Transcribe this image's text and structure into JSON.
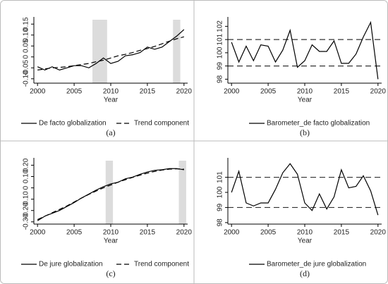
{
  "chart_data": [
    {
      "type": "line",
      "label": "(a)",
      "x_label": "Year",
      "x": [
        2000,
        2001,
        2002,
        2003,
        2004,
        2005,
        2006,
        2007,
        2008,
        2009,
        2010,
        2011,
        2012,
        2013,
        2014,
        2015,
        2016,
        2017,
        2018,
        2019,
        2020
      ],
      "series": [
        {
          "name": "De facto globalization",
          "color": "#000000",
          "style": "solid",
          "values": [
            -0.045,
            -0.06,
            -0.045,
            -0.06,
            -0.05,
            -0.04,
            -0.04,
            -0.05,
            -0.03,
            -0.005,
            -0.03,
            -0.02,
            0.005,
            0.01,
            0.02,
            0.045,
            0.035,
            0.045,
            0.07,
            0.095,
            0.125
          ]
        },
        {
          "name": "Trend component",
          "color": "#000000",
          "style": "dashed",
          "values": [
            -0.06,
            -0.055,
            -0.05,
            -0.048,
            -0.045,
            -0.04,
            -0.035,
            -0.03,
            -0.022,
            -0.015,
            -0.005,
            0.005,
            0.012,
            0.02,
            0.03,
            0.038,
            0.048,
            0.06,
            0.072,
            0.083,
            0.092
          ]
        }
      ],
      "shaded_regions": [
        [
          2007.5,
          2009.5
        ],
        [
          2018.5,
          2019.5
        ]
      ],
      "xlim": [
        1999.5,
        2020.5
      ],
      "ylim": [
        -0.12,
        0.17
      ],
      "xticks": [
        2000,
        2005,
        2010,
        2015,
        2020
      ],
      "yticks": [
        {
          "value": -0.1,
          "label": "-0.10"
        },
        -0.05,
        0,
        0.05,
        {
          "value": 0.1,
          "label": "0.10"
        },
        0.15
      ]
    },
    {
      "type": "line",
      "label": "(b)",
      "x_label": "Year",
      "x": [
        2000,
        2001,
        2002,
        2003,
        2004,
        2005,
        2006,
        2007,
        2008,
        2009,
        2010,
        2011,
        2012,
        2013,
        2014,
        2015,
        2016,
        2017,
        2018,
        2019,
        2020
      ],
      "series": [
        {
          "name": "Barometer_de facto globalization",
          "color": "#000000",
          "style": "solid",
          "values": [
            100.8,
            99.3,
            100.5,
            99.4,
            100.6,
            100.5,
            99.3,
            100.2,
            101.7,
            98.9,
            99.4,
            100.6,
            100.1,
            100.1,
            100.9,
            99.2,
            99.2,
            99.9,
            101.2,
            102.3,
            98.0
          ]
        }
      ],
      "reference_lines": [
        101,
        99
      ],
      "xlim": [
        1999.5,
        2020.5
      ],
      "ylim": [
        97.7,
        102.5
      ],
      "xticks": [
        2000,
        2005,
        2010,
        2015,
        2020
      ],
      "yticks": [
        98,
        99,
        100,
        101,
        102
      ]
    },
    {
      "type": "line",
      "label": "(c)",
      "x_label": "Year",
      "x": [
        2000,
        2001,
        2002,
        2003,
        2004,
        2005,
        2006,
        2007,
        2008,
        2009,
        2010,
        2011,
        2012,
        2013,
        2014,
        2015,
        2016,
        2017,
        2018,
        2019,
        2020
      ],
      "series": [
        {
          "name": "De jure globalization",
          "color": "#000000",
          "style": "solid",
          "values": [
            -0.29,
            -0.25,
            -0.225,
            -0.2,
            -0.165,
            -0.13,
            -0.09,
            -0.055,
            -0.02,
            0.01,
            0.035,
            0.05,
            0.08,
            0.095,
            0.12,
            0.14,
            0.155,
            0.16,
            0.17,
            0.17,
            0.16
          ]
        },
        {
          "name": "Trend component",
          "color": "#000000",
          "style": "dashed",
          "values": [
            -0.28,
            -0.25,
            -0.22,
            -0.19,
            -0.16,
            -0.125,
            -0.09,
            -0.058,
            -0.028,
            0.0,
            0.025,
            0.05,
            0.072,
            0.093,
            0.112,
            0.13,
            0.145,
            0.157,
            0.165,
            0.168,
            0.165
          ]
        }
      ],
      "shaded_regions": [
        [
          2009.3,
          2010.3
        ],
        [
          2019.3,
          2020.3
        ]
      ],
      "xlim": [
        1999.5,
        2020.5
      ],
      "ylim": [
        -0.32,
        0.24
      ],
      "xticks": [
        2000,
        2005,
        2010,
        2015,
        2020
      ],
      "yticks": [
        {
          "value": -0.3,
          "label": "-0.30"
        },
        {
          "value": -0.2,
          "label": "-0.20"
        },
        {
          "value": -0.1,
          "label": "-0.10"
        },
        0,
        {
          "value": 0.1,
          "label": "0.10"
        },
        {
          "value": 0.2,
          "label": "0.20"
        }
      ]
    },
    {
      "type": "line",
      "label": "(d)",
      "x_label": "Year",
      "x": [
        2000,
        2001,
        2002,
        2003,
        2004,
        2005,
        2006,
        2007,
        2008,
        2009,
        2010,
        2011,
        2012,
        2013,
        2014,
        2015,
        2016,
        2017,
        2018,
        2019,
        2020
      ],
      "series": [
        {
          "name": "Barometer_de jure globalization",
          "color": "#000000",
          "style": "solid",
          "values": [
            100.0,
            101.4,
            99.3,
            99.1,
            99.3,
            99.3,
            100.2,
            101.3,
            101.9,
            101.2,
            99.3,
            98.8,
            99.9,
            98.9,
            99.7,
            101.5,
            100.3,
            100.4,
            101.1,
            100.1,
            98.5
          ]
        }
      ],
      "reference_lines": [
        101,
        99
      ],
      "xlim": [
        1999.5,
        2020.5
      ],
      "ylim": [
        97.9,
        102.1
      ],
      "xticks": [
        2000,
        2005,
        2010,
        2015,
        2020
      ],
      "yticks": [
        98,
        99,
        100,
        101
      ]
    }
  ]
}
